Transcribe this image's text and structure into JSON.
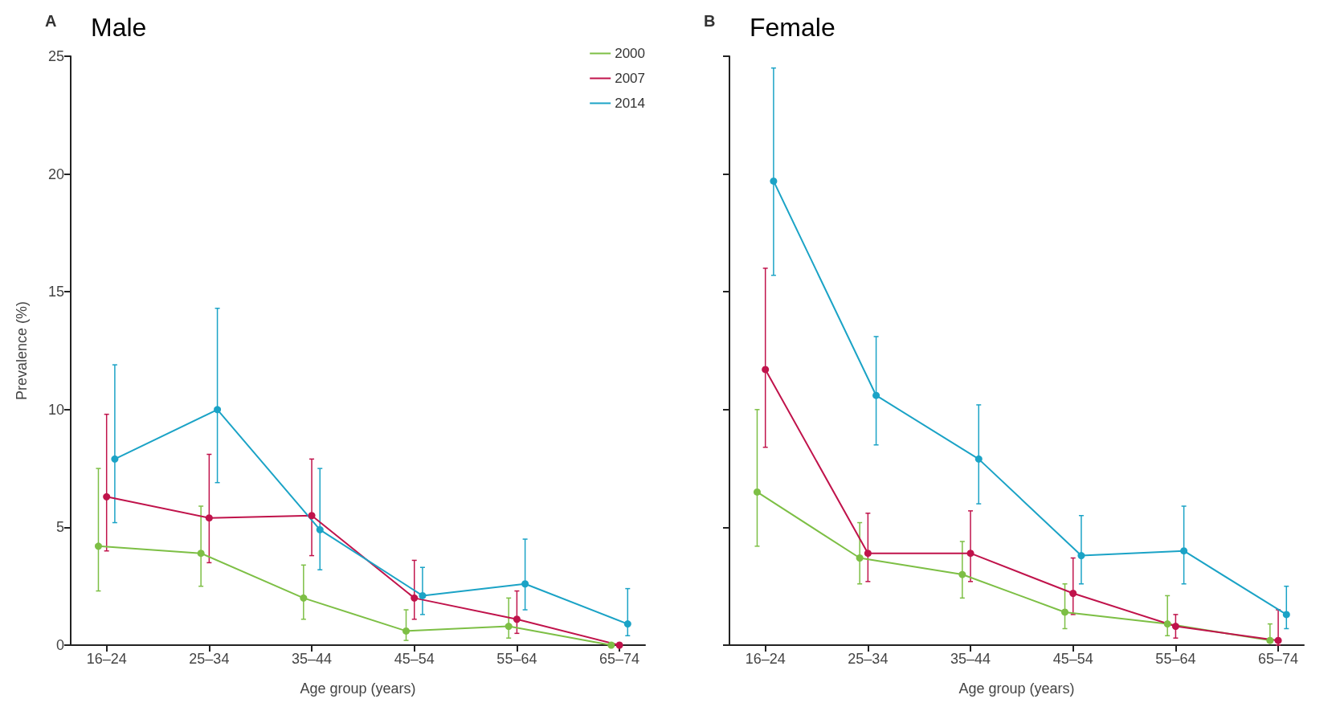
{
  "chart_data": [
    {
      "type": "line",
      "title": "Male",
      "annotations": [
        "A"
      ],
      "xlabel": "Age group (years)",
      "ylabel": "Prevalence (%)",
      "categories": [
        "16–24",
        "25–34",
        "35–44",
        "45–54",
        "55–64",
        "65–74"
      ],
      "ylim": [
        0,
        25
      ],
      "yticks": [
        0,
        5,
        10,
        15,
        20,
        25
      ],
      "grid": false,
      "legend": "top right",
      "marker": "circle",
      "series": [
        {
          "name": "2000",
          "color": "#7dbf45",
          "values": [
            4.2,
            3.9,
            2.0,
            0.6,
            0.8,
            0.0
          ],
          "errors": [
            [
              2.3,
              7.5
            ],
            [
              2.5,
              5.9
            ],
            [
              1.1,
              3.4
            ],
            [
              0.2,
              1.5
            ],
            [
              0.3,
              2.0
            ],
            null
          ]
        },
        {
          "name": "2007",
          "color": "#c0134b",
          "values": [
            6.3,
            5.4,
            5.5,
            2.0,
            1.1,
            0.0
          ],
          "errors": [
            [
              4.0,
              9.8
            ],
            [
              3.5,
              8.1
            ],
            [
              3.8,
              7.9
            ],
            [
              1.1,
              3.6
            ],
            [
              0.5,
              2.3
            ],
            null
          ]
        },
        {
          "name": "2014",
          "color": "#1ba3c6",
          "values": [
            7.9,
            10.0,
            4.9,
            2.1,
            2.6,
            0.9
          ],
          "errors": [
            [
              5.2,
              11.9
            ],
            [
              6.9,
              14.3
            ],
            [
              3.2,
              7.5
            ],
            [
              1.3,
              3.3
            ],
            [
              1.5,
              4.5
            ],
            [
              0.4,
              2.4
            ]
          ]
        }
      ]
    },
    {
      "type": "line",
      "title": "Female",
      "annotations": [
        "B"
      ],
      "xlabel": "Age group (years)",
      "categories": [
        "16–24",
        "25–34",
        "35–44",
        "45–54",
        "55–64",
        "65–74"
      ],
      "ylim": [
        0,
        25
      ],
      "yticks": [
        0,
        5,
        10,
        15,
        20,
        25
      ],
      "tick_labels": "x",
      "grid": false,
      "marker": "circle",
      "series": [
        {
          "color": "#7dbf45",
          "values": [
            6.5,
            3.7,
            3.0,
            1.4,
            0.9,
            0.2
          ],
          "errors": [
            [
              4.2,
              10.0
            ],
            [
              2.6,
              5.2
            ],
            [
              2.0,
              4.4
            ],
            [
              0.7,
              2.6
            ],
            [
              0.4,
              2.1
            ],
            [
              0.1,
              0.9
            ]
          ]
        },
        {
          "color": "#c0134b",
          "values": [
            11.7,
            3.9,
            3.9,
            2.2,
            0.8,
            0.2
          ],
          "errors": [
            [
              8.4,
              16.0
            ],
            [
              2.7,
              5.6
            ],
            [
              2.7,
              5.7
            ],
            [
              1.3,
              3.7
            ],
            [
              0.3,
              1.3
            ],
            [
              0.0,
              1.5
            ]
          ]
        },
        {
          "color": "#1ba3c6",
          "values": [
            19.7,
            10.6,
            7.9,
            3.8,
            4.0,
            1.3
          ],
          "errors": [
            [
              15.7,
              24.5
            ],
            [
              8.5,
              13.1
            ],
            [
              6.0,
              10.2
            ],
            [
              2.6,
              5.5
            ],
            [
              2.6,
              5.9
            ],
            [
              0.7,
              2.5
            ]
          ]
        }
      ]
    }
  ]
}
